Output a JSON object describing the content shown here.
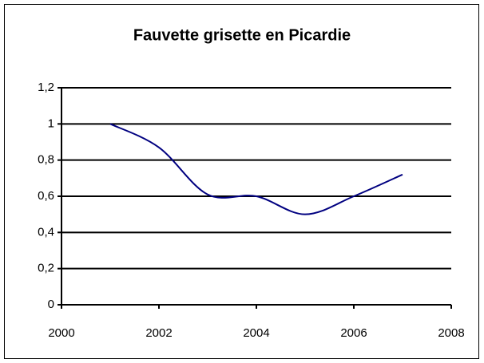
{
  "chart_data": {
    "type": "line",
    "title": "Fauvette grisette en Picardie",
    "x": [
      2001,
      2002,
      2003,
      2004,
      2005,
      2006,
      2007
    ],
    "series": [
      {
        "name": null,
        "color": "#000080",
        "values": [
          1,
          0.87,
          0.61,
          0.6,
          0.5,
          0.6,
          0.72
        ]
      }
    ],
    "xlim": [
      2000,
      2008
    ],
    "xticks": [
      2000,
      2002,
      2004,
      2006,
      2008
    ],
    "ylim": [
      0,
      1.2
    ],
    "yticks": [
      0,
      {
        "value": 0.2,
        "label": "0,2"
      },
      {
        "value": 0.4,
        "label": "0,4"
      },
      {
        "value": 0.6,
        "label": "0,6"
      },
      {
        "value": 0.8,
        "label": "0,8"
      },
      1,
      {
        "value": 1.2,
        "label": "1,2"
      }
    ],
    "grid": true,
    "smooth": true
  }
}
